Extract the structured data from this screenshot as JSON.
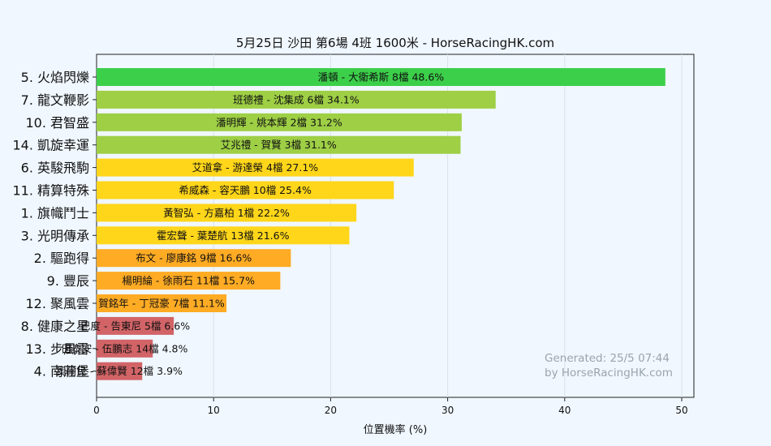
{
  "chart_data": {
    "type": "bar",
    "orientation": "horizontal",
    "title": "5月25日  沙田  第6場  4班  1600米 - HorseRacingHK.com",
    "xlabel": "位置機率 (%)",
    "xlim": [
      0,
      51
    ],
    "xticks": [
      0,
      10,
      20,
      30,
      40,
      50
    ],
    "grid": "vertical",
    "categories": [
      "5. 火焰閃爍",
      "7. 龍文鞭影",
      "10. 君智盛",
      "14. 凱旋幸運",
      "6. 英駿飛駒",
      "11. 精算特殊",
      "1. 旗幟鬥士",
      "3. 光明傳承",
      "2. 驅跑得",
      "9. 豐辰",
      "12. 聚風雲",
      "8. 健康之星",
      "13. 步風雷",
      "4. 南莊堡"
    ],
    "values": [
      48.6,
      34.1,
      31.2,
      31.1,
      27.1,
      25.4,
      22.2,
      21.6,
      16.6,
      15.7,
      11.1,
      6.6,
      4.8,
      3.9
    ],
    "bar_labels": [
      "潘頓 - 大衛希斯 8檔  48.6%",
      "班德禮 - 沈集成 6檔  34.1%",
      "潘明輝 - 姚本輝 2檔  31.2%",
      "艾兆禮 - 賀賢 3檔  31.1%",
      "艾道拿 - 游達榮 4檔  27.1%",
      "希威森 - 容天鵬 10檔  25.4%",
      "黃智弘 - 方嘉柏 1檔  22.2%",
      "霍宏聲 - 葉楚航 13檔  21.6%",
      "布文 - 廖康銘 9檔  16.6%",
      "楊明綸 - 徐雨石 11檔  15.7%",
      "賀銘年 - 丁冠豪 7檔  11.1%",
      "巴度 - 告東尼 5檔  6.6%",
      "田泰安 - 伍鵬志 14檔  4.8%",
      "奧爾民 - 蘇偉賢 12檔  3.9%"
    ],
    "colors": [
      "#3ccf4a",
      "#9ecf45",
      "#9ecf45",
      "#9ecf45",
      "#ffd61a",
      "#ffd61a",
      "#ffd61a",
      "#ffd61a",
      "#ffab24",
      "#ffab24",
      "#ffab24",
      "#d26467",
      "#d26467",
      "#d26467"
    ],
    "watermark": [
      "Generated: 25/5 07:44",
      "by HorseRacingHK.com"
    ]
  }
}
